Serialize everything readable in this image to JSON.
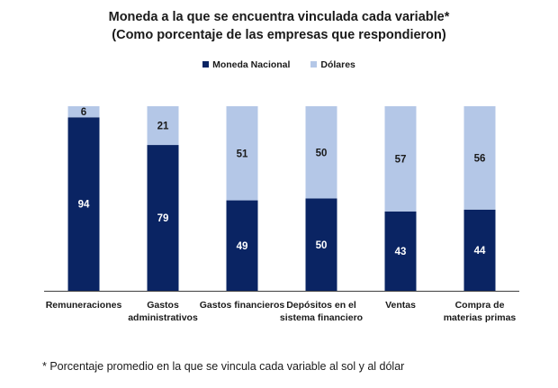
{
  "chart_data": {
    "type": "bar",
    "stacked": true,
    "title": "Moneda a la que se encuentra vinculada cada variable*",
    "subtitle": "(Como porcentaje de las empresas que respondieron)",
    "xlabel": "",
    "ylabel": "",
    "ylim": [
      0,
      100
    ],
    "grid": false,
    "legend_position": "top-center",
    "categories": [
      "Remuneraciones",
      "Gastos administrativos",
      "Gastos financieros",
      "Depósitos en el sistema financiero",
      "Ventas",
      "Compra de materias primas"
    ],
    "category_label_lines": [
      [
        "Remuneraciones"
      ],
      [
        "Gastos",
        "administrativos"
      ],
      [
        "Gastos financieros"
      ],
      [
        "Depósitos en el",
        "sistema financiero"
      ],
      [
        "Ventas"
      ],
      [
        "Compra de",
        "materias primas"
      ]
    ],
    "series": [
      {
        "name": "Moneda Nacional",
        "color": "#0a2463",
        "label_color": "#ffffff",
        "values": [
          94,
          79,
          49,
          50,
          43,
          44
        ]
      },
      {
        "name": "Dólares",
        "color": "#b4c7e7",
        "label_color": "#1a1a1a",
        "values": [
          6,
          21,
          51,
          50,
          57,
          56
        ]
      }
    ],
    "footnote": "* Porcentaje promedio en la que se vincula cada variable al sol y al dólar"
  }
}
